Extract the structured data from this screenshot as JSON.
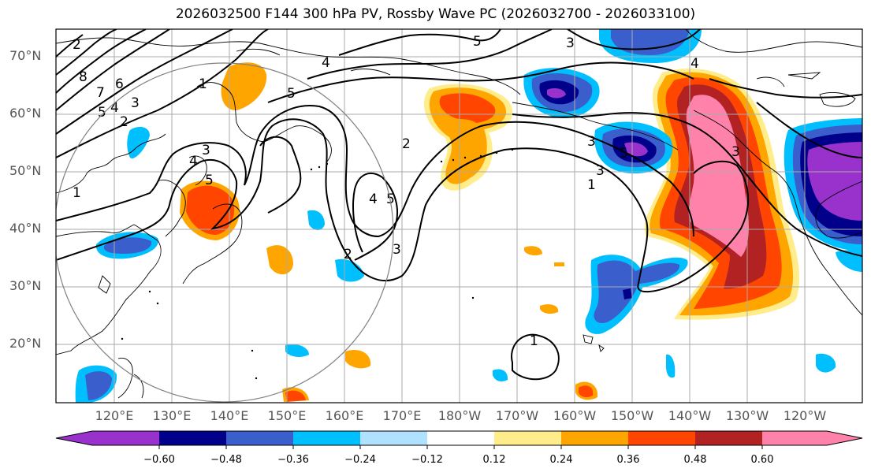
{
  "title": "2026032500 F144 300 hPa PV, Rossby Wave PC (2026032700 - 2026033100)",
  "map": {
    "lat_labels": [
      "70°N",
      "60°N",
      "50°N",
      "40°N",
      "30°N",
      "20°N"
    ],
    "lon_labels": [
      "120°E",
      "130°E",
      "140°E",
      "150°E",
      "160°E",
      "170°E",
      "180°W",
      "170°W",
      "160°W",
      "150°W",
      "140°W",
      "130°W",
      "120°W"
    ],
    "contour_labels": [
      "5",
      "3",
      "4",
      "8",
      "7",
      "6",
      "5",
      "4",
      "3",
      "2",
      "1",
      "5",
      "4",
      "3",
      "5",
      "2",
      "4",
      "5",
      "2",
      "3",
      "5",
      "3",
      "3",
      "1",
      "1",
      "1",
      "4",
      "3",
      "2"
    ]
  },
  "colorbar": {
    "ticks": [
      "−0.60",
      "−0.48",
      "−0.36",
      "−0.24",
      "−0.12",
      "0.12",
      "0.24",
      "0.36",
      "0.48",
      "0.60"
    ],
    "colors": [
      "#9932cc",
      "#00008b",
      "#3a5fcd",
      "#00bfff",
      "#b0e2ff",
      "#ffffff",
      "#ffec8b",
      "#ffa500",
      "#ff4500",
      "#b22222",
      "#ff82ab"
    ]
  }
}
